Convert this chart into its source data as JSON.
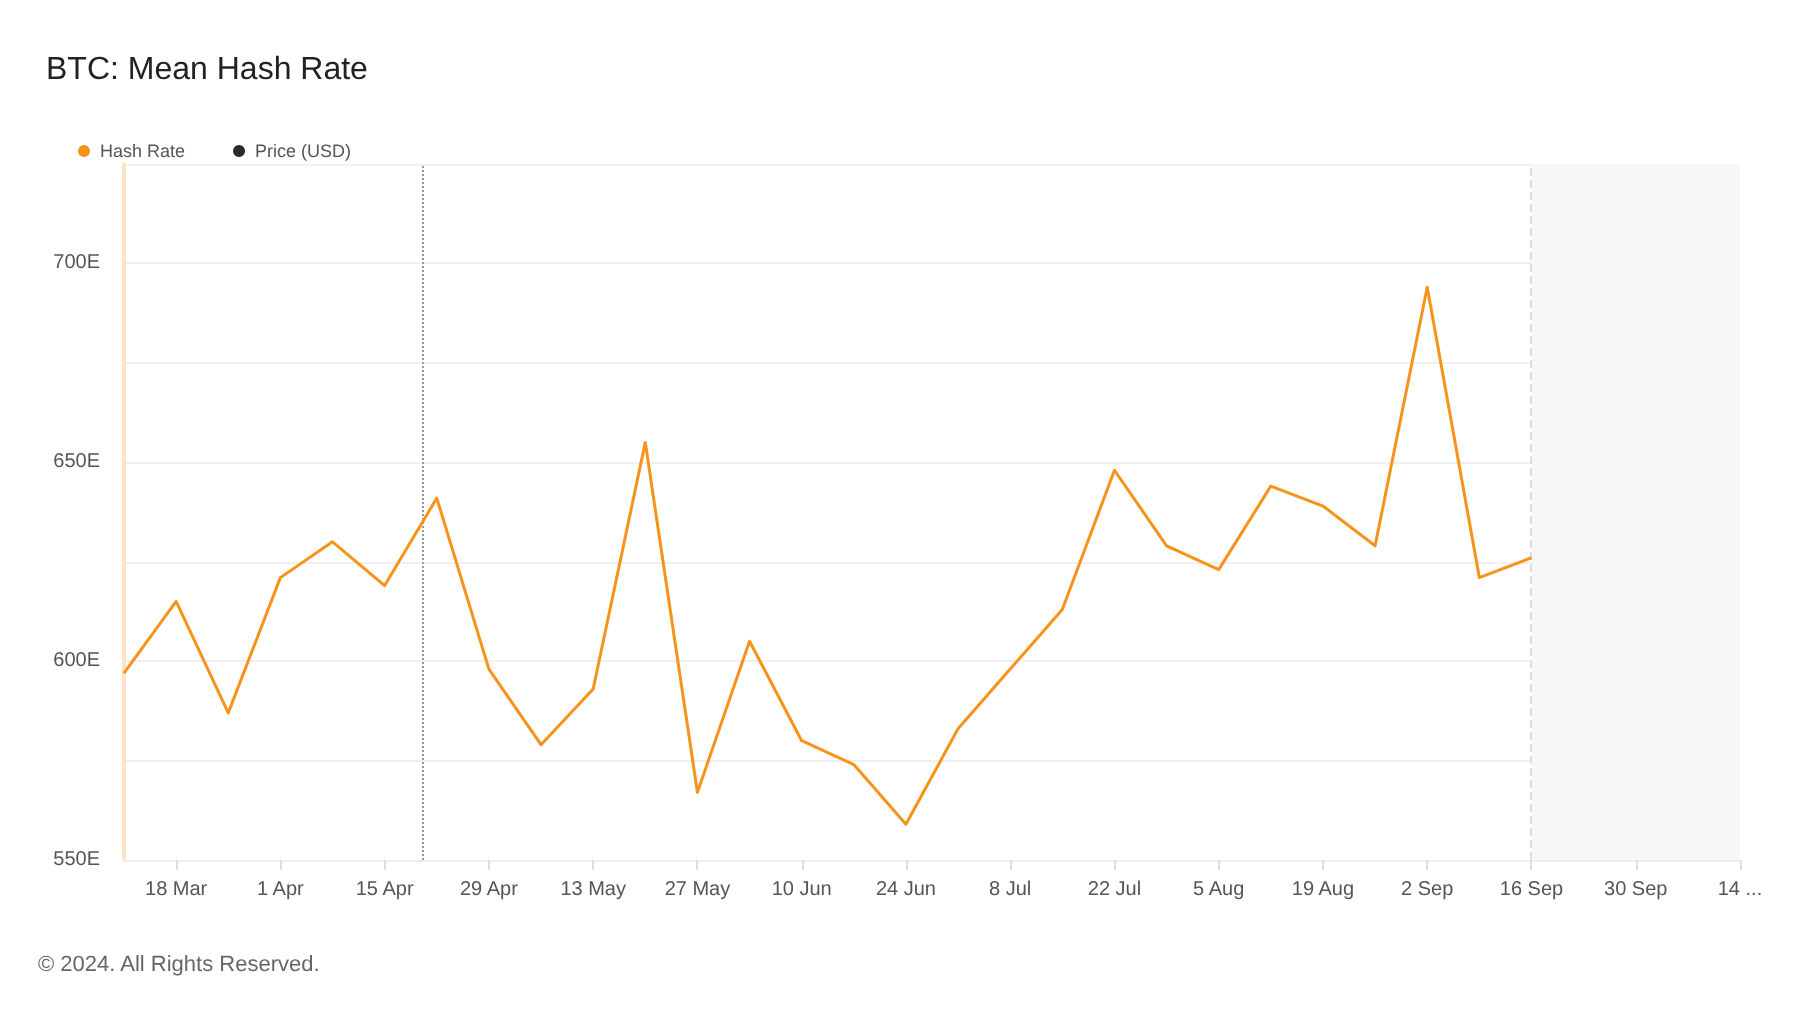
{
  "chart_data": {
    "type": "line",
    "title": "BTC: Mean Hash Rate",
    "x": [
      "2024-03-11",
      "2024-03-18",
      "2024-03-25",
      "2024-04-01",
      "2024-04-08",
      "2024-04-15",
      "2024-04-22",
      "2024-04-29",
      "2024-05-06",
      "2024-05-13",
      "2024-05-20",
      "2024-05-27",
      "2024-06-03",
      "2024-06-10",
      "2024-06-17",
      "2024-06-24",
      "2024-07-01",
      "2024-07-08",
      "2024-07-15",
      "2024-07-22",
      "2024-07-29",
      "2024-08-05",
      "2024-08-12",
      "2024-08-19",
      "2024-08-26",
      "2024-09-02",
      "2024-09-09",
      "2024-09-16"
    ],
    "series": [
      {
        "name": "Hash Rate",
        "color": "#f7931a",
        "values": [
          597,
          615,
          587,
          621,
          630,
          619,
          641,
          598,
          579,
          593,
          655,
          567,
          605,
          580,
          574,
          559,
          583,
          598,
          613,
          648,
          629,
          623,
          644,
          639,
          629,
          694,
          621,
          626
        ]
      },
      {
        "name": "Price (USD)",
        "color": "#2b2b2b",
        "values": [
          null,
          null,
          null,
          null,
          null,
          null,
          null,
          null,
          null,
          null,
          null,
          null,
          null,
          null,
          null,
          null,
          null,
          null,
          null,
          null,
          null,
          null,
          null,
          null,
          null,
          null,
          null,
          null
        ]
      }
    ],
    "xlim": [
      "2024-03-11",
      "2024-10-14"
    ],
    "xticks": [
      {
        "value": "2024-03-18",
        "label": "18 Mar"
      },
      {
        "value": "2024-04-01",
        "label": "1 Apr"
      },
      {
        "value": "2024-04-15",
        "label": "15 Apr"
      },
      {
        "value": "2024-04-29",
        "label": "29 Apr"
      },
      {
        "value": "2024-05-13",
        "label": "13 May"
      },
      {
        "value": "2024-05-27",
        "label": "27 May"
      },
      {
        "value": "2024-06-10",
        "label": "10 Jun"
      },
      {
        "value": "2024-06-24",
        "label": "24 Jun"
      },
      {
        "value": "2024-07-08",
        "label": "8 Jul"
      },
      {
        "value": "2024-07-22",
        "label": "22 Jul"
      },
      {
        "value": "2024-08-05",
        "label": "5 Aug"
      },
      {
        "value": "2024-08-19",
        "label": "19 Aug"
      },
      {
        "value": "2024-09-02",
        "label": "2 Sep"
      },
      {
        "value": "2024-09-16",
        "label": "16 Sep"
      },
      {
        "value": "2024-09-30",
        "label": "30 Sep"
      },
      {
        "value": "2024-10-14",
        "label": "14 ..."
      }
    ],
    "ylim": [
      550,
      725
    ],
    "yticks": [
      {
        "value": 550,
        "label": "550E"
      },
      {
        "value": 575,
        "label": null
      },
      {
        "value": 600,
        "label": "600E"
      },
      {
        "value": 625,
        "label": null
      },
      {
        "value": 650,
        "label": "650E"
      },
      {
        "value": 675,
        "label": null
      },
      {
        "value": 700,
        "label": "700E"
      },
      {
        "value": 725,
        "label": null
      }
    ],
    "ref_lines": [
      {
        "axis": "x",
        "value": "2024-04-20",
        "label": null,
        "color": "#999999",
        "line_style": "dotted"
      },
      {
        "axis": "x",
        "value": "2024-09-16",
        "label": null,
        "color": "#dddddd",
        "line_style": "dashed"
      }
    ],
    "bands": [
      {
        "axis": "x",
        "from": "2024-09-16",
        "to": "2024-10-14",
        "label": null,
        "color": "#f7f7f7"
      }
    ],
    "grid": "y",
    "legend": "top left",
    "marker": "none",
    "line_style": "solid",
    "annotations": [
      "© 2024. All Rights Reserved."
    ]
  }
}
